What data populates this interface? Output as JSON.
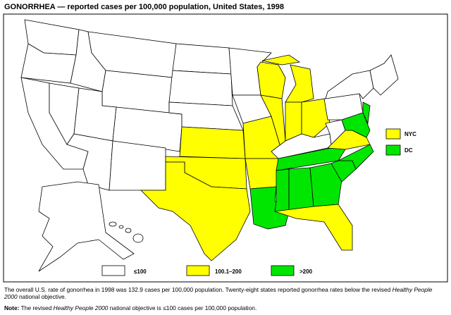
{
  "title": "GONORRHEA — reported cases per 100,000 population, United States, 1998",
  "legend": [
    {
      "label": "≤100",
      "color": "#ffffff"
    },
    {
      "label": "100.1–200",
      "color": "#ffff00"
    },
    {
      "label": ">200",
      "color": "#00e600"
    }
  ],
  "insets": [
    {
      "label": "NYC",
      "color": "#ffff00"
    },
    {
      "label": "DC",
      "color": "#00e600"
    }
  ],
  "footnote": {
    "part1": "The overall U.S. rate of gonorrhea in 1998 was 132.9 cases per 100,000 population. Twenty-eight states reported gonorrhea rates below the revised ",
    "italic": "Healthy People 2000",
    "part2": " national objective."
  },
  "note": {
    "label": "Note:",
    "part1": " The revised ",
    "italic": "Healthy People 2000",
    "part2": " national objective is ≤100 cases per 100,000 population."
  }
}
